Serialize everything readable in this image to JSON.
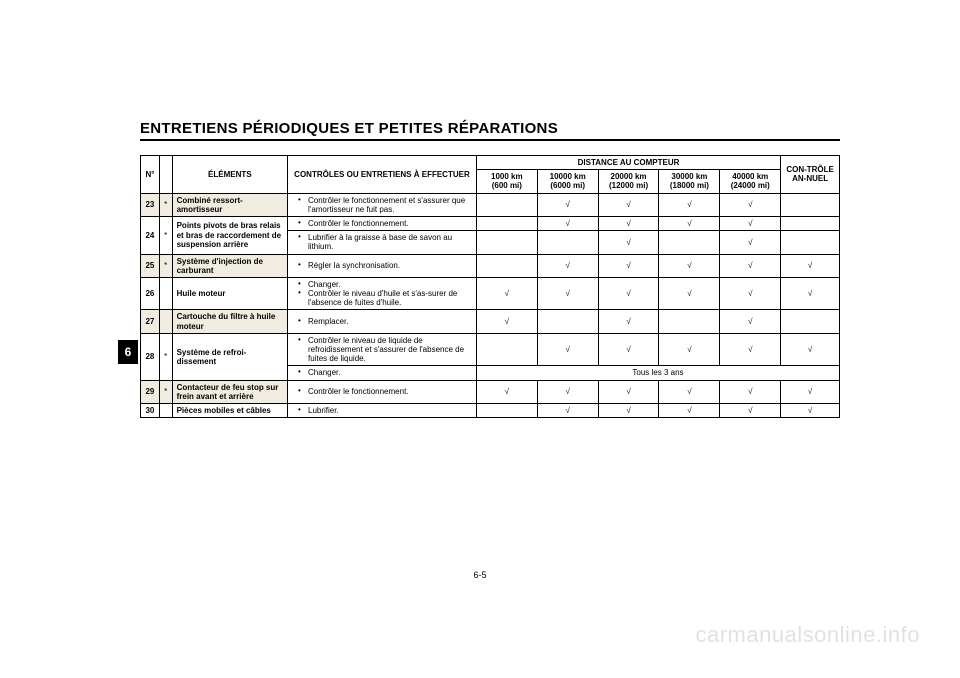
{
  "title": "ENTRETIENS PÉRIODIQUES ET PETITES RÉPARATIONS",
  "chapter_tab": "6",
  "page_number": "6-5",
  "watermark": "carmanualsonline.info",
  "headers": {
    "n": "N°",
    "elements": "ÉLÉMENTS",
    "controls": "CONTRÔLES OU ENTRETIENS À EFFECTUER",
    "distance_group": "DISTANCE AU COMPTEUR",
    "annual": "CON-TRÔLE AN-NUEL",
    "dist": [
      {
        "top": "1000 km",
        "bot": "(600 mi)"
      },
      {
        "top": "10000 km",
        "bot": "(6000 mi)"
      },
      {
        "top": "20000 km",
        "bot": "(12000 mi)"
      },
      {
        "top": "30000 km",
        "bot": "(18000 mi)"
      },
      {
        "top": "40000 km",
        "bot": "(24000 mi)"
      }
    ]
  },
  "checkmark": "√",
  "rows": [
    {
      "n": "23",
      "star": "*",
      "shaded": true,
      "element": "Combiné ressort-amortisseur",
      "actions": [
        "Contrôler le fonctionnement et s'assurer que l'amortisseur ne fuit pas."
      ],
      "marks": [
        "",
        "√",
        "√",
        "√",
        "√",
        ""
      ]
    },
    {
      "n": "24",
      "star": "*",
      "shaded": false,
      "element": "Points pivots de bras relais et bras de raccordement de suspension arrière",
      "sub": [
        {
          "actions": [
            "Contrôler le fonctionnement."
          ],
          "marks": [
            "",
            "√",
            "√",
            "√",
            "√",
            ""
          ]
        },
        {
          "actions": [
            "Lubrifier à la graisse à base de savon au lithium."
          ],
          "marks": [
            "",
            "",
            "√",
            "",
            "√",
            ""
          ]
        }
      ]
    },
    {
      "n": "25",
      "star": "*",
      "shaded": true,
      "element": "Système d'injection de carburant",
      "actions": [
        "Régler la synchronisation."
      ],
      "marks": [
        "",
        "√",
        "√",
        "√",
        "√",
        "√"
      ]
    },
    {
      "n": "26",
      "star": "",
      "shaded": false,
      "element": "Huile moteur",
      "actions": [
        "Changer.",
        "Contrôler le niveau d'huile et s'as-surer de l'absence de fuites d'huile."
      ],
      "marks": [
        "√",
        "√",
        "√",
        "√",
        "√",
        "√"
      ]
    },
    {
      "n": "27",
      "star": "",
      "shaded": true,
      "element": "Cartouche du filtre à huile moteur",
      "actions": [
        "Remplacer."
      ],
      "marks": [
        "√",
        "",
        "√",
        "",
        "√",
        ""
      ]
    },
    {
      "n": "28",
      "star": "*",
      "shaded": false,
      "element": "Système de refroi-dissement",
      "sub": [
        {
          "actions": [
            "Contrôler le niveau de liquide de refroidissement et s'assurer de l'absence de fuites de liquide."
          ],
          "marks": [
            "",
            "√",
            "√",
            "√",
            "√",
            "√"
          ]
        },
        {
          "actions": [
            "Changer."
          ],
          "span_text": "Tous les 3 ans"
        }
      ]
    },
    {
      "n": "29",
      "star": "*",
      "shaded": true,
      "element": "Contacteur de feu stop sur frein avant et arrière",
      "actions": [
        "Contrôler le fonctionnement."
      ],
      "marks": [
        "√",
        "√",
        "√",
        "√",
        "√",
        "√"
      ]
    },
    {
      "n": "30",
      "star": "",
      "shaded": false,
      "element": "Pièces mobiles et câbles",
      "actions": [
        "Lubrifier."
      ],
      "marks": [
        "",
        "√",
        "√",
        "√",
        "√",
        "√"
      ]
    }
  ]
}
